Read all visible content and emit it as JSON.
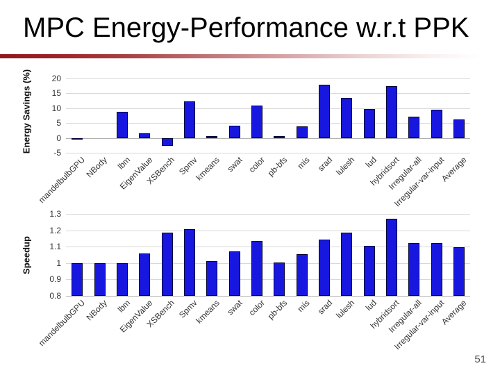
{
  "title": "MPC Energy-Performance w.r.t PPK",
  "page_number": "51",
  "colors": {
    "bar_fill": "#1717df",
    "bar_border": "#000038",
    "gridline": "#d8d8d8",
    "baseline": "#b0b0b0",
    "divider_red": "#8e191b",
    "tick_text": "#333333",
    "page_number_text": "#4d4d4d"
  },
  "chart_data": [
    {
      "id": "energy-savings",
      "type": "bar",
      "title": "",
      "ylabel": "Energy Savings (%)",
      "xlabel": "",
      "ylim": [
        -5,
        20
      ],
      "ytick_values": [
        20,
        15,
        10,
        5,
        0,
        -5
      ],
      "ytick_labels": [
        "20",
        "15",
        "10",
        "5",
        "0",
        "-5"
      ],
      "bar_base": 0,
      "grid": true,
      "legend": "none",
      "categories": [
        "mandelbulbGPU",
        "NBody",
        "lbm",
        "EigenValue",
        "XSBench",
        "Spmv",
        "kmeans",
        "swat",
        "color",
        "pb-bfs",
        "mis",
        "srad",
        "lulesh",
        "lud",
        "hybridsort",
        "Irregular-all",
        "Irregular-var-input",
        "Average"
      ],
      "values": [
        -0.4,
        0,
        8.9,
        1.6,
        -2.6,
        12.3,
        0.7,
        4.0,
        10.8,
        0.7,
        3.9,
        17.8,
        13.4,
        9.8,
        17.5,
        7.1,
        9.6,
        6.3
      ]
    },
    {
      "id": "speedup",
      "type": "bar",
      "title": "",
      "ylabel": "Speedup",
      "xlabel": "",
      "ylim": [
        0.8,
        1.3
      ],
      "ytick_values": [
        1.3,
        1.2,
        1.1,
        1,
        0.9,
        0.8
      ],
      "ytick_labels": [
        "1.3",
        "1.2",
        "1.1",
        "1",
        "0.9",
        "0.8"
      ],
      "bar_base": 0.8,
      "grid": true,
      "legend": "none",
      "categories": [
        "mandelbulbGPU",
        "NBody",
        "lbm",
        "EigenValue",
        "XSBench",
        "Spmv",
        "kmeans",
        "swat",
        "color",
        "pb-bfs",
        "mis",
        "srad",
        "lulesh",
        "lud",
        "hybridsort",
        "Irregular-all",
        "Irregular-var-input",
        "Average"
      ],
      "values": [
        1.0,
        1.0,
        1.0,
        1.06,
        1.185,
        1.205,
        1.01,
        1.07,
        1.135,
        1.005,
        1.055,
        1.145,
        1.185,
        1.105,
        1.27,
        1.12,
        1.12,
        1.095
      ]
    }
  ]
}
